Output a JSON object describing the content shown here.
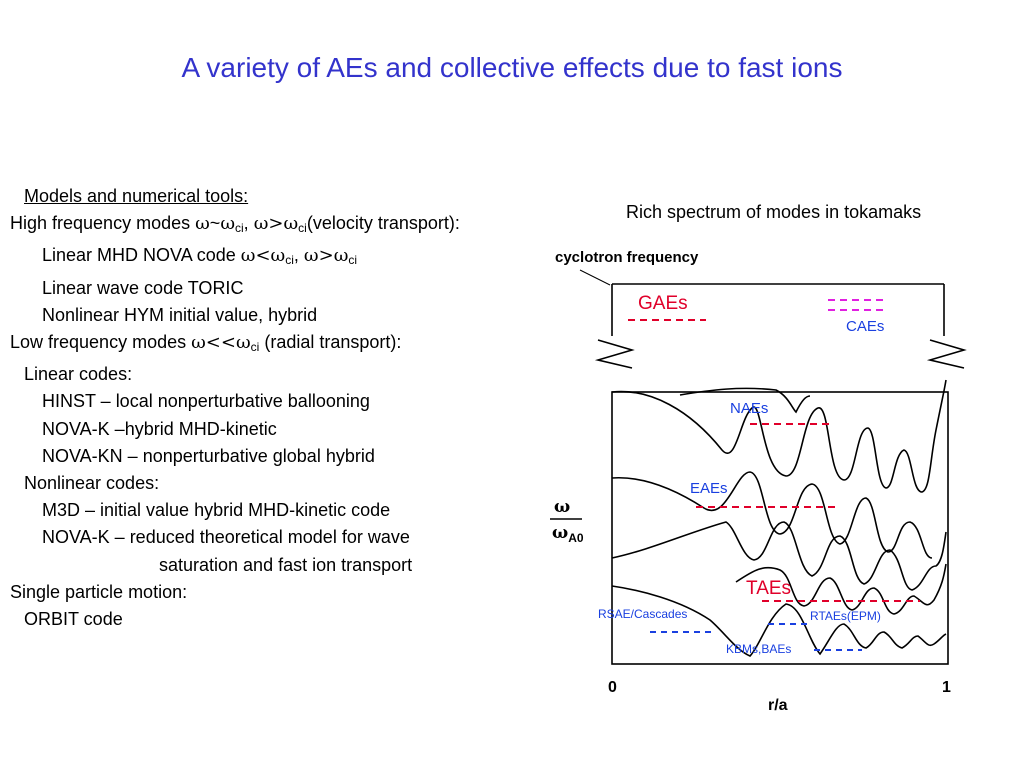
{
  "slide": {
    "title": "A variety of  AEs and collective effects due to fast ions"
  },
  "tools": {
    "heading": " Models and numerical tools:",
    "hf": {
      "prefix": "High frequency modes ",
      "sep": ", ",
      "suffix": "(velocity transport):"
    },
    "nova": {
      "prefix": "Linear MHD NOVA code ",
      "sep": ", "
    },
    "toric": "Linear wave code TORIC",
    "hym": "Nonlinear HYM initial value, hybrid",
    "lf": {
      "prefix": "Low frequency modes ",
      "suffix": " (radial transport):"
    },
    "linear_codes": "Linear codes:",
    "hinst": "HINST – local nonperturbative ballooning",
    "novak": "NOVA-K –hybrid MHD-kinetic",
    "novakn": "NOVA-KN – nonperturbative global hybrid",
    "nonlinear_codes": "Nonlinear codes:",
    "m3d": "M3D – initial value hybrid MHD-kinetic code",
    "novak2": "NOVA-K – reduced theoretical model for wave",
    "novak2_cont": "saturation and fast ion transport",
    "single": "Single particle motion:",
    "orbit": "ORBIT code",
    "sym": {
      "omega": "ω",
      "tilde": "~",
      "gt": ">",
      "lt": "<",
      "ll": "<<",
      "ci": "ci"
    }
  },
  "spectrum": {
    "caption": "Rich spectrum of modes in tokamaks",
    "cyclotron": "cyclotron frequency",
    "labels": {
      "gae": "GAEs",
      "cae": "CAEs",
      "nae": "NAEs",
      "eae": "EAEs",
      "tae": "TAEs",
      "rsae": "RSAE/Cascades",
      "rtae": "RTAEs(EPM)",
      "kbm": "KBMs,BAEs"
    },
    "axis": {
      "x0": "0",
      "x1": "1",
      "xlabel": "r/a",
      "y_num": "ω",
      "y_den": "ω",
      "y_den_sub": "A0"
    },
    "colors": {
      "red": "#e0002a",
      "magenta": "#e020e0",
      "blue": "#1a40e0",
      "title": "#3333cc"
    }
  }
}
